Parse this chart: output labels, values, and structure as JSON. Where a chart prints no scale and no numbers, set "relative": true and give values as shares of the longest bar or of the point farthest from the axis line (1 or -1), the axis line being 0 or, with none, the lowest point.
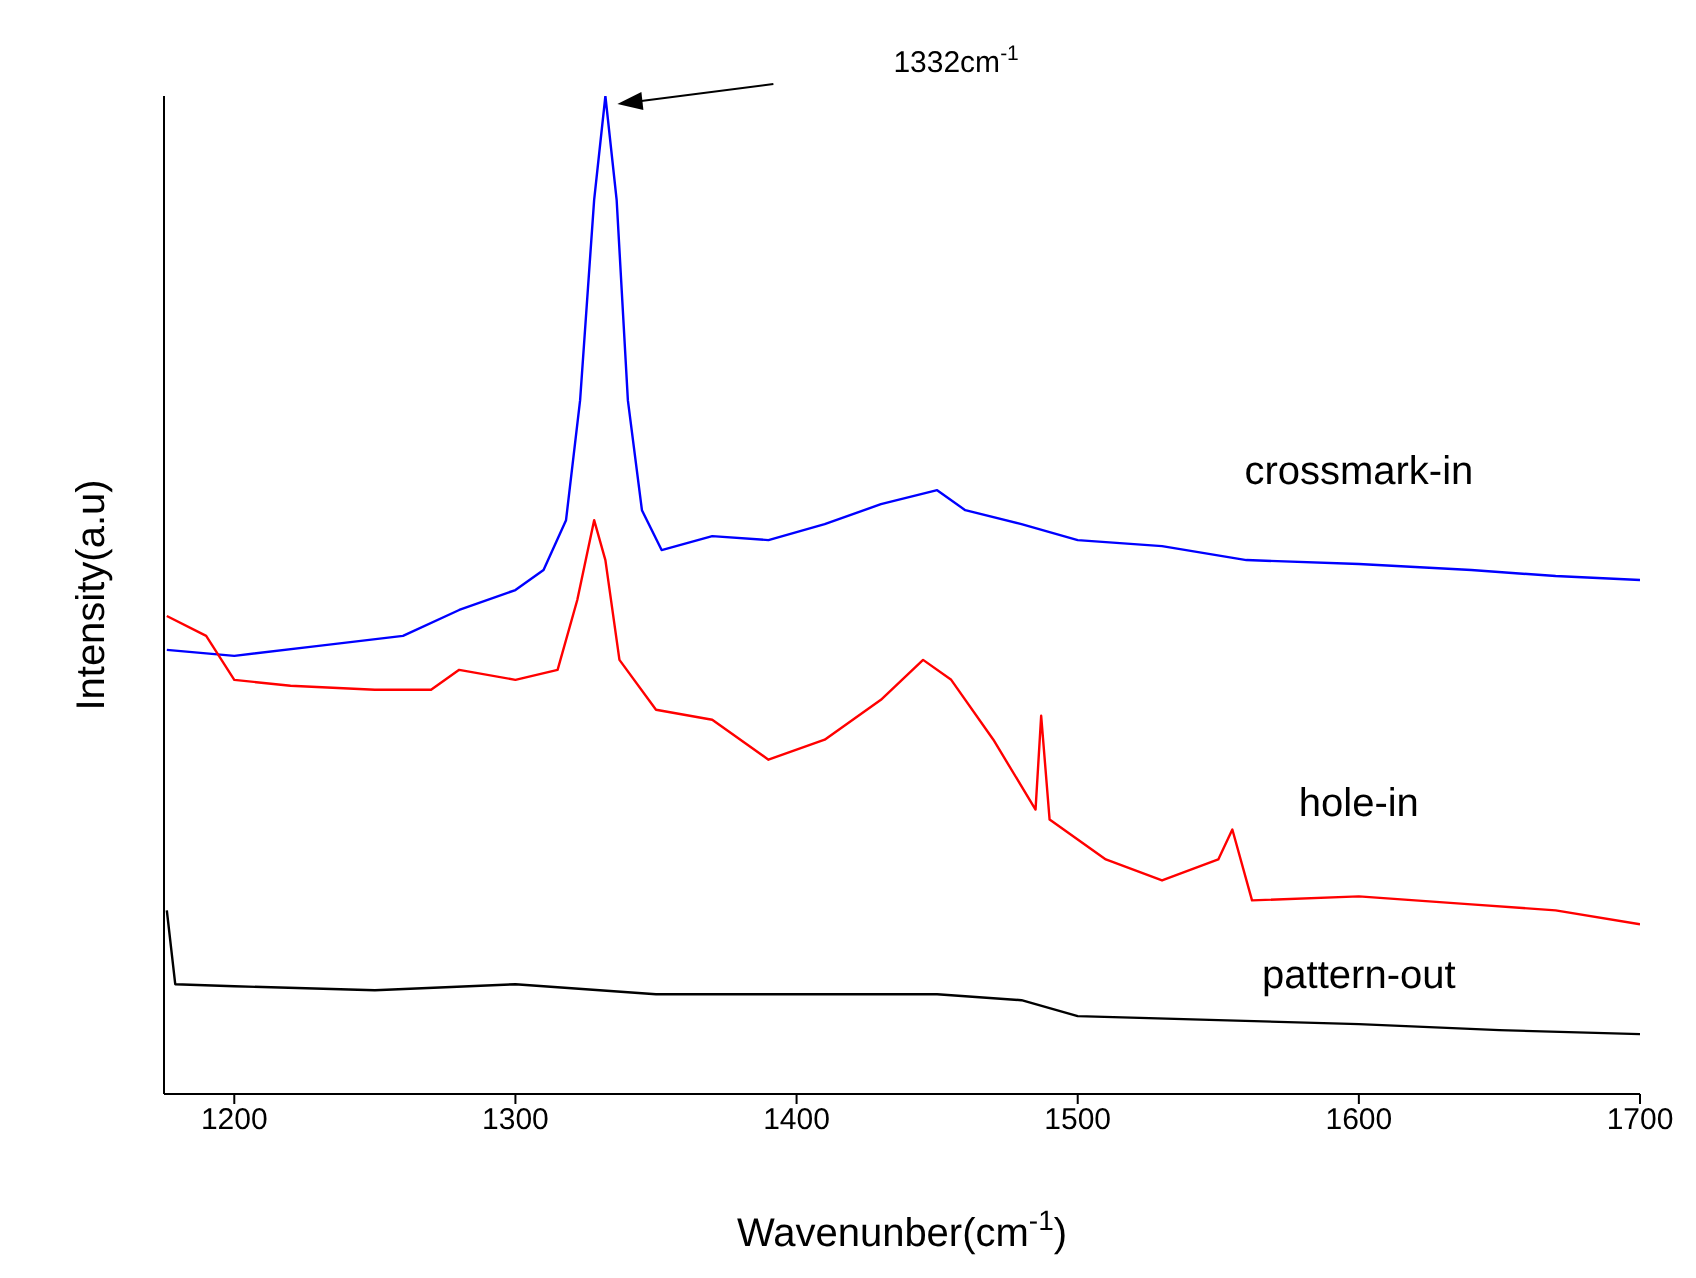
{
  "chart_data": {
    "type": "line",
    "relative": true,
    "xlabel": "Wavenunber(cm$^{-1}$)",
    "ylabel": "Intensity(a.u)",
    "xlim": [
      1175,
      1700
    ],
    "xticks": [
      1200,
      1300,
      1400,
      1500,
      1600,
      1700
    ],
    "marker": "none",
    "line_style": "solid",
    "annotations": [
      "1332cm$^{-1}$"
    ],
    "series": [
      {
        "name": "crossmark-in",
        "color": "#0000ff",
        "x": [
          1176,
          1200,
          1230,
          1260,
          1280,
          1300,
          1310,
          1318,
          1323,
          1328,
          1332,
          1336,
          1340,
          1345,
          1352,
          1370,
          1390,
          1410,
          1430,
          1450,
          1460,
          1480,
          1500,
          1530,
          1560,
          1600,
          1640,
          1670,
          1700
        ],
        "values": [
          0.445,
          0.439,
          0.449,
          0.459,
          0.485,
          0.505,
          0.525,
          0.575,
          0.695,
          0.896,
          1.0,
          0.896,
          0.695,
          0.585,
          0.545,
          0.559,
          0.555,
          0.571,
          0.591,
          0.605,
          0.585,
          0.571,
          0.555,
          0.549,
          0.535,
          0.531,
          0.525,
          0.519,
          0.515
        ]
      },
      {
        "name": "hole-in",
        "color": "#ff0000",
        "x": [
          1176,
          1190,
          1200,
          1220,
          1250,
          1270,
          1280,
          1300,
          1315,
          1322,
          1328,
          1332,
          1337,
          1350,
          1370,
          1390,
          1410,
          1430,
          1445,
          1455,
          1470,
          1485,
          1487,
          1490,
          1510,
          1530,
          1550,
          1555,
          1562,
          1600,
          1640,
          1670,
          1700
        ],
        "values": [
          0.479,
          0.459,
          0.415,
          0.409,
          0.405,
          0.405,
          0.425,
          0.415,
          0.425,
          0.495,
          0.575,
          0.535,
          0.435,
          0.385,
          0.375,
          0.335,
          0.355,
          0.395,
          0.435,
          0.415,
          0.355,
          0.285,
          0.379,
          0.275,
          0.235,
          0.214,
          0.235,
          0.265,
          0.194,
          0.198,
          0.19,
          0.184,
          0.17
        ]
      },
      {
        "name": "pattern-out",
        "color": "#000000",
        "x": [
          1176,
          1179,
          1200,
          1250,
          1300,
          1350,
          1400,
          1450,
          1480,
          1500,
          1550,
          1600,
          1650,
          1700
        ],
        "values": [
          0.184,
          0.11,
          0.108,
          0.104,
          0.11,
          0.1,
          0.1,
          0.1,
          0.094,
          0.078,
          0.074,
          0.07,
          0.064,
          0.06
        ]
      }
    ]
  }
}
